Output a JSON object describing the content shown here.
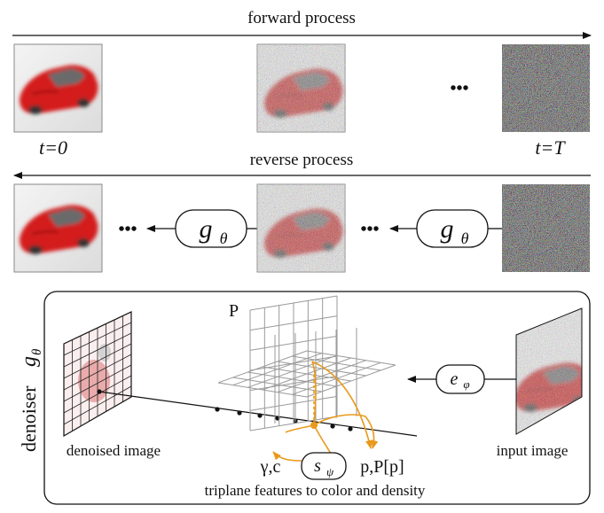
{
  "top": {
    "forward_label": "forward process",
    "reverse_label": "reverse process",
    "t0_label": "t=0",
    "tT_label": "t=T",
    "ellipsis": "•••"
  },
  "reverse_row": {
    "denoiser_symbol": "g",
    "denoiser_subscript": "θ",
    "ellipsis": "•••"
  },
  "denoiser_panel": {
    "side_title": "denoiser",
    "side_symbol": "g",
    "side_subscript": "θ",
    "triplane_label": "P",
    "encoder_symbol": "e",
    "encoder_subscript": "φ",
    "decoder_symbol": "s",
    "decoder_subscript": "ψ",
    "output_left": "γ,c",
    "output_right": "p,P[p]",
    "denoised_caption": "denoised image",
    "input_caption": "input image",
    "bottom_caption": "triplane features to color and density"
  },
  "colors": {
    "car_red": "#d41a1a",
    "flow_orange": "#e89a1c",
    "grid_gray": "#9a9a9a",
    "ink": "#111111"
  }
}
